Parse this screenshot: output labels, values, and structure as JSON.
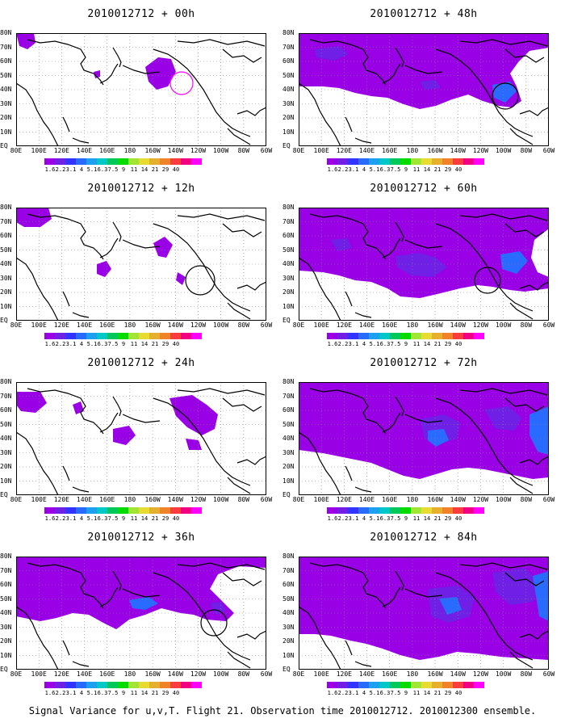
{
  "panels": [
    {
      "title": "2010012712 + 00h",
      "coverage": 0.06,
      "circle": true
    },
    {
      "title": "2010012712 + 12h",
      "coverage": 0.14,
      "circle": true
    },
    {
      "title": "2010012712 + 24h",
      "coverage": 0.22,
      "circle": false
    },
    {
      "title": "2010012712 + 36h",
      "coverage": 0.45,
      "circle": true
    },
    {
      "title": "2010012712 + 48h",
      "coverage": 0.55,
      "circle": true
    },
    {
      "title": "2010012712 + 60h",
      "coverage": 0.62,
      "circle": true
    },
    {
      "title": "2010012712 + 72h",
      "coverage": 0.7,
      "circle": false
    },
    {
      "title": "2010012712 + 84h",
      "coverage": 0.78,
      "circle": false
    }
  ],
  "lat_labels": [
    "80N",
    "70N",
    "60N",
    "50N",
    "40N",
    "30N",
    "20N",
    "10N",
    "EQ"
  ],
  "lon_labels": [
    "80E",
    "100E",
    "120E",
    "140E",
    "160E",
    "180",
    "160W",
    "140W",
    "120W",
    "100W",
    "80W",
    "60W"
  ],
  "colorbar": {
    "labels": [
      "1.6",
      "2.2",
      "3.1",
      "4",
      "5.1",
      "6.3",
      "7.5",
      "9",
      "11",
      "14",
      "21",
      "29",
      "40"
    ],
    "colors": [
      "#9a00e6",
      "#6f1fe6",
      "#3333ff",
      "#2a6bff",
      "#1ea0f0",
      "#00c8c8",
      "#00c85a",
      "#00dc00",
      "#a0e632",
      "#e6dc32",
      "#e6af2d",
      "#f08228",
      "#fa3c3c",
      "#f00082",
      "#ff00ff"
    ]
  },
  "map_colors": {
    "land": "#000000",
    "variance_low": "#9a00e6",
    "variance_mid": "#6f1fe6",
    "variance_high": "#2a6bff",
    "circle": "#000000"
  },
  "caption": "Signal Variance for u,v,T. Flight 21. Observation time 2010012712. 2010012300 ensemble."
}
